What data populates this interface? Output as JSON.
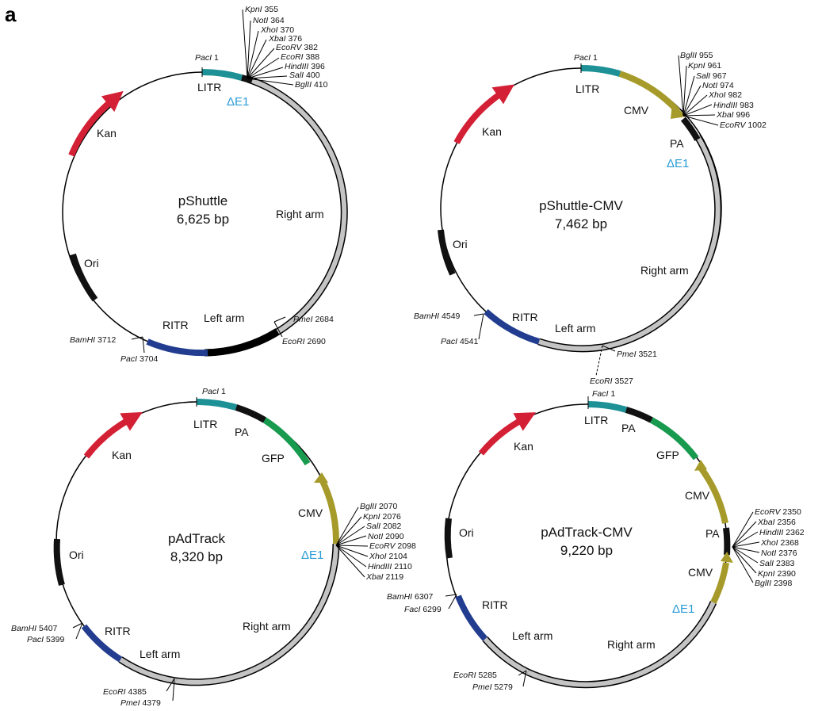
{
  "figure": {
    "panel_label": "a",
    "colors": {
      "kan": "#d42035",
      "ori": "#111111",
      "litr": "#1d9196",
      "ritr": "#223d8f",
      "cmv": "#a69b2a",
      "gfp": "#189a4f",
      "pa": "#111111",
      "arm": "#c4c4c4",
      "delta_e1": "#2a9bd6"
    }
  },
  "plasmids": [
    {
      "id": "pshuttle",
      "name": "pShuttle",
      "size": "6,625 bp",
      "labels": {
        "kan": "Kan",
        "ori": "Ori",
        "litr": "LITR",
        "ritr": "RITR",
        "delta_e1": "ΔE1",
        "right_arm": "Right arm",
        "left_arm": "Left arm"
      },
      "top_site": {
        "enzyme": "PacI",
        "pos": "1"
      },
      "mcs": [
        {
          "enzyme": "KpnI",
          "pos": "355"
        },
        {
          "enzyme": "NotI",
          "pos": "364"
        },
        {
          "enzyme": "XhoI",
          "pos": "370"
        },
        {
          "enzyme": "XbaI",
          "pos": "376"
        },
        {
          "enzyme": "EcoRV",
          "pos": "382"
        },
        {
          "enzyme": "EcoRI",
          "pos": "388"
        },
        {
          "enzyme": "HindIII",
          "pos": "396"
        },
        {
          "enzyme": "SalI",
          "pos": "400"
        },
        {
          "enzyme": "BglII",
          "pos": "410"
        }
      ],
      "bottom_sites": [
        {
          "enzyme": "PmeI",
          "pos": "2684"
        },
        {
          "enzyme": "EcoRI",
          "pos": "2690"
        },
        {
          "enzyme": "BamHI",
          "pos": "3712"
        },
        {
          "enzyme": "PacI",
          "pos": "3704"
        }
      ]
    },
    {
      "id": "pshuttle-cmv",
      "name": "pShuttle-CMV",
      "size": "7,462 bp",
      "labels": {
        "kan": "Kan",
        "ori": "Ori",
        "litr": "LITR",
        "ritr": "RITR",
        "cmv": "CMV",
        "pa": "PA",
        "delta_e1": "ΔE1",
        "right_arm": "Right arm",
        "left_arm": "Left arm"
      },
      "top_site": {
        "enzyme": "PacI",
        "pos": "1"
      },
      "mcs": [
        {
          "enzyme": "BglII",
          "pos": "955"
        },
        {
          "enzyme": "KpnI",
          "pos": "961"
        },
        {
          "enzyme": "SalI",
          "pos": "967"
        },
        {
          "enzyme": "NotI",
          "pos": "974"
        },
        {
          "enzyme": "XhoI",
          "pos": "982"
        },
        {
          "enzyme": "HindIII",
          "pos": "983"
        },
        {
          "enzyme": "XbaI",
          "pos": "996"
        },
        {
          "enzyme": "EcoRV",
          "pos": "1002"
        }
      ],
      "bottom_sites": [
        {
          "enzyme": "BamHI",
          "pos": "4549"
        },
        {
          "enzyme": "PacI",
          "pos": "4541"
        },
        {
          "enzyme": "PmeI",
          "pos": "3521"
        },
        {
          "enzyme": "EcoRI",
          "pos": "3527"
        }
      ]
    },
    {
      "id": "padtrack",
      "name": "pAdTrack",
      "size": "8,320 bp",
      "labels": {
        "kan": "Kan",
        "ori": "Ori",
        "litr": "LITR",
        "ritr": "RITR",
        "pa": "PA",
        "gfp": "GFP",
        "cmv": "CMV",
        "delta_e1": "ΔE1",
        "right_arm": "Right arm",
        "left_arm": "Left arm"
      },
      "top_site": {
        "enzyme": "PacI",
        "pos": "1"
      },
      "mcs": [
        {
          "enzyme": "BglII",
          "pos": "2070"
        },
        {
          "enzyme": "KpnI",
          "pos": "2076"
        },
        {
          "enzyme": "SalI",
          "pos": "2082"
        },
        {
          "enzyme": "NotI",
          "pos": "2090"
        },
        {
          "enzyme": "EcoRV",
          "pos": "2098"
        },
        {
          "enzyme": "XhoI",
          "pos": "2104"
        },
        {
          "enzyme": "HindIII",
          "pos": "2110"
        },
        {
          "enzyme": "XbaI",
          "pos": "2119"
        }
      ],
      "bottom_sites": [
        {
          "enzyme": "BamHI",
          "pos": "5407"
        },
        {
          "enzyme": "PacI",
          "pos": "5399"
        },
        {
          "enzyme": "EcoRI",
          "pos": "4385"
        },
        {
          "enzyme": "PmeI",
          "pos": "4379"
        }
      ]
    },
    {
      "id": "padtrack-cmv",
      "name": "pAdTrack-CMV",
      "size": "9,220 bp",
      "labels": {
        "kan": "Kan",
        "ori": "Ori",
        "litr": "LITR",
        "ritr": "RITR",
        "pa": "PA",
        "gfp": "GFP",
        "cmv_top": "CMV",
        "pa_mid": "PA",
        "cmv_bottom": "CMV",
        "delta_e1": "ΔE1",
        "right_arm": "Right arm",
        "left_arm": "Left arm"
      },
      "top_site": {
        "enzyme": "FacI",
        "pos": "1"
      },
      "mcs": [
        {
          "enzyme": "EcoRV",
          "pos": "2350"
        },
        {
          "enzyme": "XbaI",
          "pos": "2356"
        },
        {
          "enzyme": "HindIII",
          "pos": "2362"
        },
        {
          "enzyme": "XhoI",
          "pos": "2368"
        },
        {
          "enzyme": "NotI",
          "pos": "2376"
        },
        {
          "enzyme": "SalI",
          "pos": "2383"
        },
        {
          "enzyme": "KpnI",
          "pos": "2390"
        },
        {
          "enzyme": "BglII",
          "pos": "2398"
        }
      ],
      "bottom_sites": [
        {
          "enzyme": "BamHI",
          "pos": "6307"
        },
        {
          "enzyme": "FacI",
          "pos": "6299"
        },
        {
          "enzyme": "EcoRI",
          "pos": "5285"
        },
        {
          "enzyme": "PmeI",
          "pos": "5279"
        }
      ]
    }
  ]
}
